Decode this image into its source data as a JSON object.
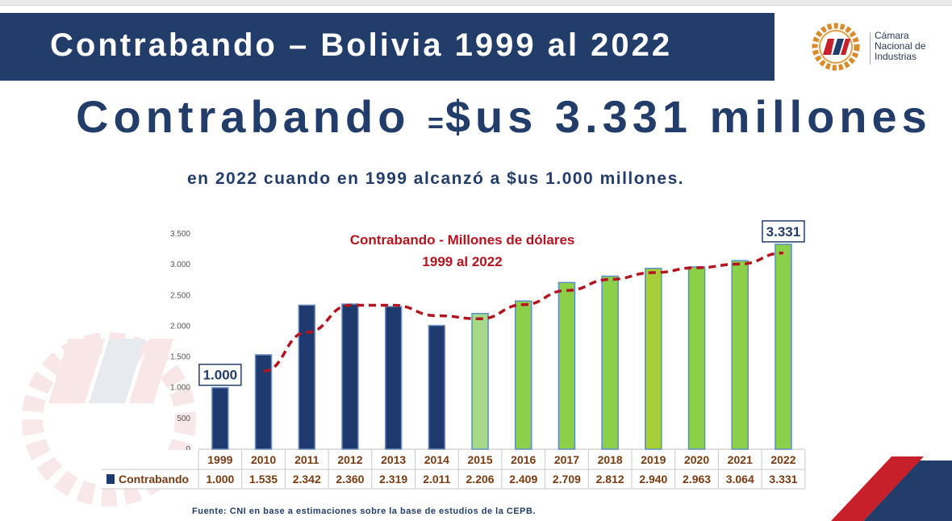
{
  "banner": {
    "title": "Contrabando – Bolivia 1999 al 2022"
  },
  "logo": {
    "lines": [
      "Cámara",
      "Nacional de",
      "Industrias"
    ],
    "mark": "CNI"
  },
  "headline": {
    "word": "Contrabando",
    "eq": "=",
    "amount": "$us 3.331 millones"
  },
  "subline": "en 2022 cuando en 1999 alcanzó a $us 1.000 millones.",
  "footer": "Fuente: CNI en base a estimaciones  sobre la base de estudios de la CEPB.",
  "colors": {
    "navy": "#233d6a",
    "bar_dark": "#1f3a6e",
    "bar_green": "#8cd04a",
    "bar_light_green": "#a7d98a",
    "bar_2019": "#a6cf3a",
    "trend_red": "#b3141f",
    "table_text": "#7a3b10"
  },
  "chart_data": {
    "type": "bar",
    "title": "Contrabando - Millones de dólares",
    "subtitle": "1999 al 2022",
    "categories": [
      "1999",
      "2010",
      "2011",
      "2012",
      "2013",
      "2014",
      "2015",
      "2016",
      "2017",
      "2018",
      "2019",
      "2020",
      "2021",
      "2022"
    ],
    "series": [
      {
        "name": "Contrabando",
        "values": [
          1000,
          1535,
          2342,
          2360,
          2319,
          2011,
          2206,
          2409,
          2709,
          2812,
          2940,
          2963,
          3064,
          3331
        ]
      }
    ],
    "value_labels": [
      "1.000",
      "1.535",
      "2.342",
      "2.360",
      "2.319",
      "2.011",
      "2.206",
      "2.409",
      "2.709",
      "2.812",
      "2.940",
      "2.963",
      "3.064",
      "3.331"
    ],
    "bar_colors": [
      "#1f3a6e",
      "#1f3a6e",
      "#1f3a6e",
      "#1f3a6e",
      "#1f3a6e",
      "#1f3a6e",
      "#a7d98a",
      "#8cd04a",
      "#8cd04a",
      "#8cd04a",
      "#a6cf3a",
      "#8cd04a",
      "#8cd04a",
      "#8cd04a"
    ],
    "yticks": [
      0,
      500,
      1000,
      1500,
      2000,
      2500,
      3000,
      3500
    ],
    "ytick_labels": [
      "0",
      "500",
      "1.000",
      "1.500",
      "2.000",
      "2.500",
      "3.000",
      "3.500"
    ],
    "ylim": [
      0,
      3500
    ],
    "callouts": [
      {
        "category": "1999",
        "text": "1.000"
      },
      {
        "category": "2022",
        "text": "3.331"
      }
    ],
    "trend_line": {
      "x": [
        "2010",
        "2011",
        "2012",
        "2013",
        "2014",
        "2015",
        "2016",
        "2017",
        "2018",
        "2019",
        "2020",
        "2021",
        "2022"
      ],
      "values": [
        1270,
        1900,
        2340,
        2340,
        2170,
        2120,
        2350,
        2580,
        2760,
        2870,
        2950,
        3010,
        3190
      ]
    },
    "legend": "data table below",
    "grid": false
  }
}
